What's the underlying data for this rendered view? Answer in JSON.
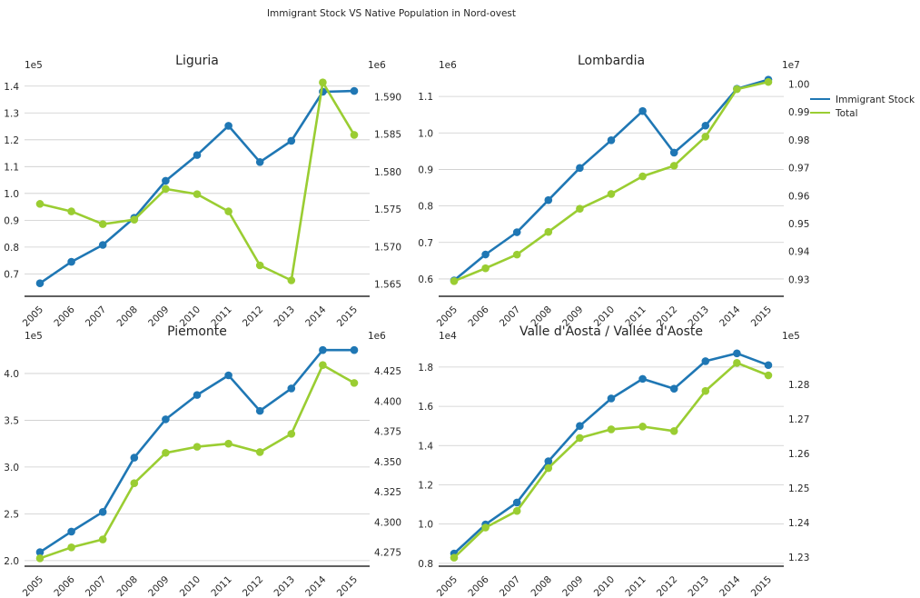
{
  "chart_data": {
    "type": "line",
    "suptitle": "Immigrant Stock VS Native Population in Nord-ovest",
    "legend": {
      "placement": "right",
      "entries": [
        "Immigrant Stock",
        "Total"
      ]
    },
    "colors": {
      "immigrant": "#1f77b4",
      "total": "#9acd32",
      "grid": "#cccccc",
      "axis": "#000000"
    },
    "grid": true,
    "panels": [
      {
        "title": "Liguria",
        "categories": [
          "2005",
          "2006",
          "2007",
          "2008",
          "2009",
          "2010",
          "2011",
          "2012",
          "2013",
          "2014",
          "2015"
        ],
        "left_exponent": "1e5",
        "right_exponent": "1e6",
        "left_ylim": [
          0.62,
          1.45
        ],
        "right_ylim": [
          1.5635,
          1.5932
        ],
        "left_ticks": [
          "0.7",
          "0.8",
          "0.9",
          "1.0",
          "1.1",
          "1.2",
          "1.3",
          "1.4"
        ],
        "right_ticks": [
          "1.565",
          "1.570",
          "1.575",
          "1.580",
          "1.585",
          "1.590"
        ],
        "series": [
          {
            "name": "Immigrant Stock",
            "axis": "left",
            "values": [
              0.665,
              0.745,
              0.808,
              0.909,
              1.047,
              1.143,
              1.252,
              1.117,
              1.196,
              1.379,
              1.382
            ]
          },
          {
            "name": "Total",
            "axis": "right",
            "values": [
              1.5757,
              1.5747,
              1.573,
              1.5736,
              1.5777,
              1.577,
              1.5747,
              1.5675,
              1.5655,
              1.5919,
              1.5849
            ]
          }
        ]
      },
      {
        "title": "Lombardia",
        "categories": [
          "2005",
          "2006",
          "2007",
          "2008",
          "2009",
          "2010",
          "2011",
          "2012",
          "2013",
          "2014",
          "2015"
        ],
        "left_exponent": "1e6",
        "right_exponent": "1e7",
        "left_ylim": [
          0.555,
          1.165
        ],
        "right_ylim": [
          0.9243,
          1.004
        ],
        "left_ticks": [
          "0.6",
          "0.7",
          "0.8",
          "0.9",
          "1.0",
          "1.1"
        ],
        "right_ticks": [
          "0.93",
          "0.94",
          "0.95",
          "0.96",
          "0.97",
          "0.98",
          "0.99",
          "1.00"
        ],
        "series": [
          {
            "name": "Immigrant Stock",
            "axis": "left",
            "values": [
              0.596,
              0.667,
              0.728,
              0.816,
              0.904,
              0.98,
              1.06,
              0.946,
              1.02,
              1.121,
              1.146
            ]
          },
          {
            "name": "Total",
            "axis": "right",
            "values": [
              0.9294,
              0.934,
              0.9389,
              0.947,
              0.9553,
              0.9606,
              0.9669,
              0.9707,
              0.9811,
              0.9981,
              1.0007
            ]
          }
        ]
      },
      {
        "title": "Piemonte",
        "categories": [
          "2005",
          "2006",
          "2007",
          "2008",
          "2009",
          "2010",
          "2011",
          "2012",
          "2013",
          "2014",
          "2015"
        ],
        "left_exponent": "1e5",
        "right_exponent": "1e6",
        "left_ylim": [
          1.95,
          4.32
        ],
        "right_ylim": [
          4.2642,
          4.4476
        ],
        "left_ticks": [
          "2.0",
          "2.5",
          "3.0",
          "3.5",
          "4.0"
        ],
        "right_ticks": [
          "4.275",
          "4.300",
          "4.325",
          "4.350",
          "4.375",
          "4.400",
          "4.425"
        ],
        "series": [
          {
            "name": "Immigrant Stock",
            "axis": "left",
            "values": [
              2.09,
              2.31,
              2.52,
              3.1,
              3.51,
              3.77,
              3.98,
              3.6,
              3.84,
              4.25,
              4.25
            ]
          },
          {
            "name": "Total",
            "axis": "right",
            "values": [
              4.27,
              4.279,
              4.2856,
              4.3321,
              4.3572,
              4.3622,
              4.3648,
              4.3578,
              4.3729,
              4.4298,
              4.415
            ]
          }
        ]
      },
      {
        "title": "Valle d'Aosta / Vallée d'Aoste",
        "categories": [
          "2005",
          "2006",
          "2007",
          "2008",
          "2009",
          "2010",
          "2011",
          "2012",
          "2013",
          "2014",
          "2015"
        ],
        "left_exponent": "1e4",
        "right_exponent": "1e5",
        "left_ylim": [
          0.79,
          1.92
        ],
        "right_ylim": [
          1.2277,
          1.2918
        ],
        "left_ticks": [
          "0.8",
          "1.0",
          "1.2",
          "1.4",
          "1.6",
          "1.8"
        ],
        "right_ticks": [
          "1.23",
          "1.24",
          "1.25",
          "1.26",
          "1.27",
          "1.28"
        ],
        "series": [
          {
            "name": "Immigrant Stock",
            "axis": "left",
            "values": [
              0.85,
              0.998,
              1.11,
              1.32,
              1.5,
              1.64,
              1.74,
              1.69,
              1.83,
              1.87,
              1.81
            ]
          },
          {
            "name": "Total",
            "axis": "right",
            "values": [
              1.2299,
              1.2386,
              1.2434,
              1.2558,
              1.2645,
              1.267,
              1.2678,
              1.2665,
              1.2781,
              1.2862,
              1.2826
            ]
          }
        ]
      }
    ]
  }
}
